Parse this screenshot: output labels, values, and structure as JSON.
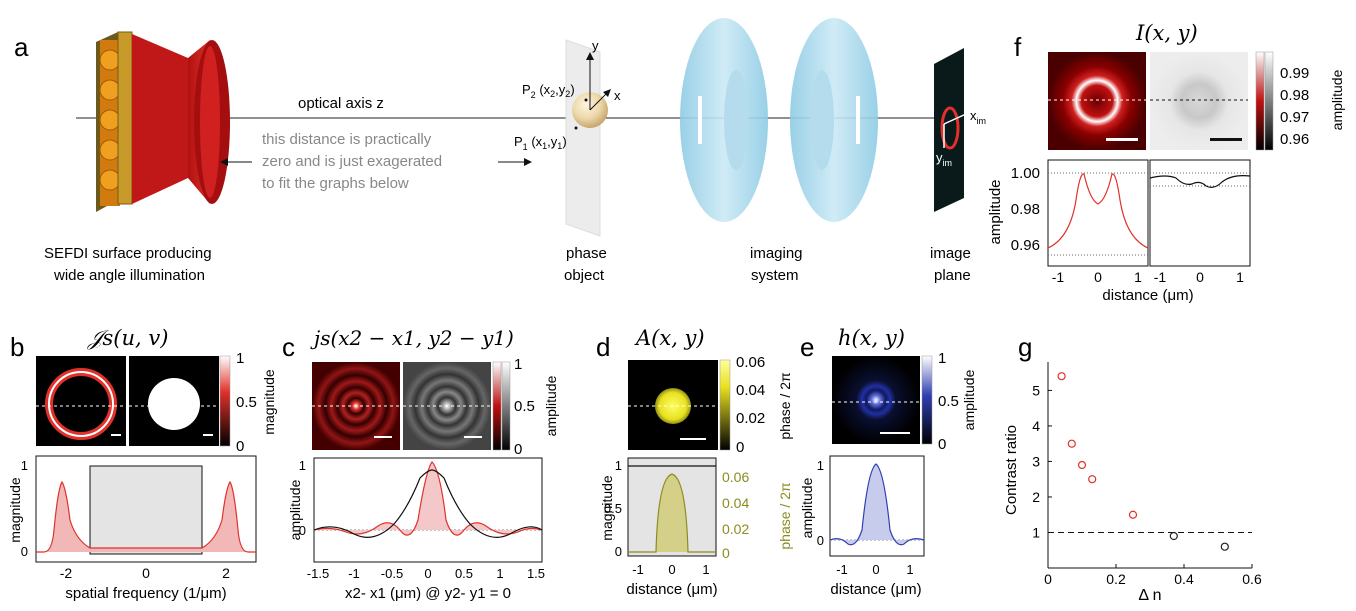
{
  "panels": {
    "a": {
      "letter": "a",
      "optical_axis": "optical axis z",
      "note": [
        "this distance is practically",
        "zero and is just exagerated",
        "to fit the graphs below"
      ],
      "sefdi": [
        "SEFDI surface producing",
        "wide angle illumination"
      ],
      "phase_object": [
        "phase",
        "object"
      ],
      "imaging_system": [
        "imaging",
        "system"
      ],
      "image_plane": [
        "image",
        "plane"
      ],
      "axis_y": "y",
      "axis_x": "x",
      "p2": "P",
      "p2_sub": "2",
      "p2_coords": "(x",
      "p2_coords_sub": "2",
      "p2_coords_mid": ",y",
      "p2_coords_sub2": "2",
      "p2_coords_end": ")",
      "p1": "P",
      "p1_sub": "1",
      "p1_coords": "(x",
      "p1_coords_sub": "1",
      "p1_coords_mid": ",y",
      "p1_coords_sub2": "1",
      "p1_coords_end": ")",
      "xim": "x",
      "xim_sub": "im",
      "yim": "y",
      "yim_sub": "im"
    },
    "b": {
      "letter": "b",
      "title": "𝒥s(u, v)",
      "colorbar_ticks": [
        "1",
        "0.5",
        "0"
      ],
      "colorbar_label": "magnitude",
      "ylabel": "magnitude",
      "xlabel": "spatial frequency (1/μm)",
      "xticks": [
        "-2",
        "0",
        "2"
      ],
      "yticks": [
        "1",
        "0"
      ]
    },
    "c": {
      "letter": "c",
      "title": "js(x2 − x1, y2 − y1)",
      "colorbar_ticks": [
        "1",
        "0.5",
        "0"
      ],
      "colorbar_label": "amplitude",
      "ylabel": "amplitude",
      "xlabel": "x2- x1 (μm) @ y2- y1 = 0",
      "xticks": [
        "-1.5",
        "-1",
        "-0.5",
        "0",
        "0.5",
        "1",
        "1.5"
      ],
      "yticks": [
        "1",
        "0"
      ]
    },
    "d": {
      "letter": "d",
      "title": "A(x, y)",
      "colorbar_ticks": [
        "0.06",
        "0.04",
        "0.02",
        "0"
      ],
      "colorbar_label": "phase / 2π",
      "ylabel": "magnitude",
      "right_label": "phase / 2π",
      "xlabel": "distance (μm)",
      "xticks": [
        "-1",
        "0",
        "1"
      ],
      "yticks": [
        "1",
        "0.5",
        "0"
      ],
      "right_ticks": [
        "0.06",
        "0.04",
        "0.02",
        "0"
      ]
    },
    "e": {
      "letter": "e",
      "title": "h(x, y)",
      "colorbar_ticks": [
        "1",
        "0.5",
        "0"
      ],
      "colorbar_label": "amplitude",
      "ylabel": "amplitude",
      "xlabel": "distance (μm)",
      "xticks": [
        "-1",
        "0",
        "1"
      ],
      "yticks": [
        "1",
        "0"
      ]
    },
    "f": {
      "letter": "f",
      "title": "I(x, y)",
      "colorbar_ticks": [
        "0.99",
        "0.98",
        "0.97",
        "0.96"
      ],
      "colorbar_label": "amplitude",
      "ylabel": "amplitude",
      "xlabel": "distance (μm)",
      "yticks": [
        "1.00",
        "0.98",
        "0.96"
      ],
      "xticks": [
        "-1",
        "0",
        "1",
        "-1",
        "0",
        "1"
      ]
    },
    "g": {
      "letter": "g",
      "ylabel": "Contrast ratio",
      "xlabel": "Δ n",
      "xticks": [
        "0",
        "0.2",
        "0.4",
        "0.6"
      ],
      "yticks": [
        "1",
        "2",
        "3",
        "4",
        "5"
      ]
    }
  },
  "chart_data": [
    {
      "type": "scatter",
      "panel": "g",
      "xlabel": "Δ n",
      "ylabel": "Contrast ratio",
      "xlim": [
        0,
        0.6
      ],
      "ylim": [
        0,
        5.8
      ],
      "reference_line": 1,
      "series": [
        {
          "color": "#e0312a",
          "points": [
            [
              0.04,
              5.4
            ],
            [
              0.07,
              3.5
            ],
            [
              0.1,
              2.9
            ],
            [
              0.13,
              2.5
            ],
            [
              0.25,
              1.5
            ]
          ]
        },
        {
          "color": "#222222",
          "points": [
            [
              0.37,
              0.9
            ],
            [
              0.52,
              0.6
            ]
          ]
        }
      ]
    }
  ],
  "colors": {
    "red": "#e0312a",
    "lens": "#a9d8ec",
    "olive": "#8c8c1e",
    "blue": "#3040b0"
  }
}
